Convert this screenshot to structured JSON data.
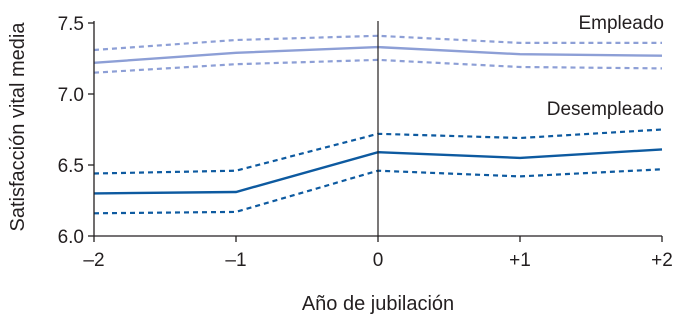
{
  "chart_data": {
    "type": "line",
    "title": "",
    "xlabel": "Año de jubilación",
    "ylabel": "Satisfacción vital media",
    "x": [
      -2,
      -1,
      0,
      1,
      2
    ],
    "x_tick_labels": [
      "–2",
      "–1",
      "0",
      "+1",
      "+2"
    ],
    "ylim": [
      6.0,
      7.5
    ],
    "y_ticks": [
      6.0,
      6.5,
      7.0,
      7.5
    ],
    "y_tick_labels": [
      "6.0",
      "6.5",
      "7.0",
      "7.5"
    ],
    "grid": false,
    "vertical_reference_line_x": 0,
    "series": [
      {
        "name": "Empleado",
        "color": "#8d9fd6",
        "mean": [
          7.22,
          7.29,
          7.33,
          7.28,
          7.27
        ],
        "upper": [
          7.31,
          7.38,
          7.41,
          7.36,
          7.36
        ],
        "lower": [
          7.15,
          7.21,
          7.24,
          7.19,
          7.18
        ]
      },
      {
        "name": "Desempleado",
        "color": "#0d5aa0",
        "mean": [
          6.3,
          6.31,
          6.59,
          6.55,
          6.61
        ],
        "upper": [
          6.44,
          6.46,
          6.72,
          6.69,
          6.75
        ],
        "lower": [
          6.16,
          6.17,
          6.46,
          6.42,
          6.47
        ]
      }
    ]
  }
}
